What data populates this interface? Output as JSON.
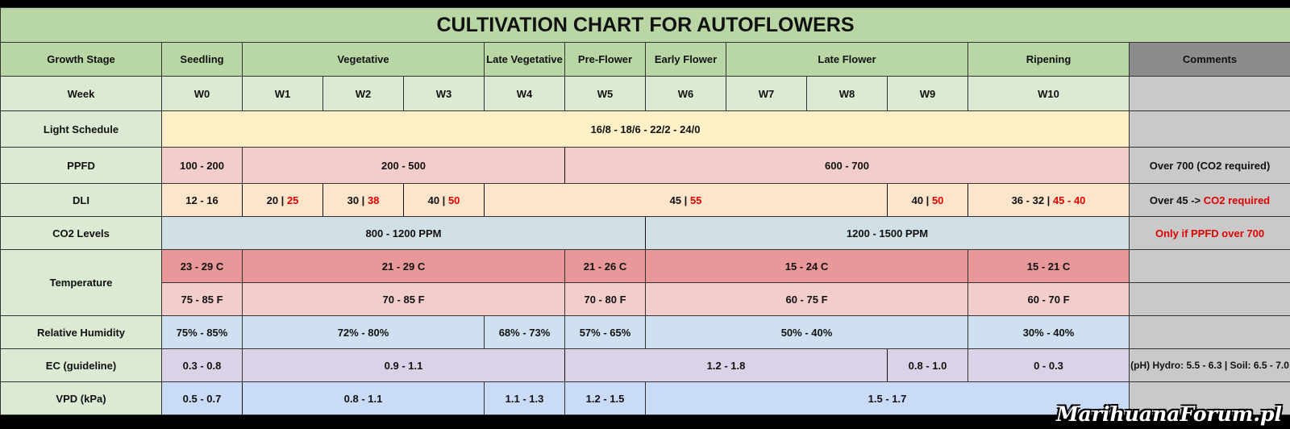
{
  "title": "CULTIVATION CHART FOR AUTOFLOWERS",
  "row_labels": {
    "stage": "Growth Stage",
    "week": "Week",
    "light": "Light Schedule",
    "ppfd": "PPFD",
    "dli": "DLI",
    "co2": "CO2 Levels",
    "temp": "Temperature",
    "rh": "Relative Humidity",
    "ec": "EC (guideline)",
    "vpd": "VPD (kPa)"
  },
  "stages": [
    "Seedling",
    "Vegetative",
    "Late Vegetative",
    "Pre-Flower",
    "Early Flower",
    "Late Flower",
    "Ripening"
  ],
  "comments_header": "Comments",
  "weeks": [
    "W0",
    "W1",
    "W2",
    "W3",
    "W4",
    "W5",
    "W6",
    "W7",
    "W8",
    "W9",
    "W10"
  ],
  "light": "16/8 - 18/6 - 22/2 - 24/0",
  "ppfd": [
    "100 - 200",
    "200 - 500",
    "600 - 700"
  ],
  "ppfd_comment": "Over 700 (CO2 required)",
  "dli": [
    {
      "a": "12 - 16",
      "b": ""
    },
    {
      "a": "20",
      "sep": " | ",
      "b": "25"
    },
    {
      "a": "30",
      "sep": " | ",
      "b": "38"
    },
    {
      "a": "40",
      "sep": " | ",
      "b": "50"
    },
    {
      "a": "45",
      "sep": " | ",
      "b": "55"
    },
    {
      "a": "40",
      "sep": " | ",
      "b": "50"
    },
    {
      "a": "36 - 32",
      "sep": " | ",
      "b": "45 - 40"
    }
  ],
  "dli_comment": {
    "a": "Over 45 -> ",
    "b": "CO2 required"
  },
  "co2": [
    "800 - 1200 PPM",
    "1200 - 1500 PPM"
  ],
  "co2_comment": "Only if PPFD over 700",
  "temp_c": [
    "23 - 29 C",
    "21 - 29 C",
    "21 - 26 C",
    "15 - 24 C",
    "15 - 21 C"
  ],
  "temp_f": [
    "75 - 85 F",
    "70 - 85 F",
    "70 - 80 F",
    "60 - 75 F",
    "60 - 70 F"
  ],
  "rh": [
    "75% - 85%",
    "72% - 80%",
    "68% - 73%",
    "57% - 65%",
    "50% - 40%",
    "30% - 40%"
  ],
  "ec": [
    "0.3 - 0.8",
    "0.9 - 1.1",
    "1.2 - 1.8",
    "0.8 - 1.0",
    "0 - 0.3"
  ],
  "ec_comment": "(pH) Hydro: 5.5 - 6.3 | Soil: 6.5 - 7.0",
  "vpd": [
    "0.5 - 0.7",
    "0.8 - 1.1",
    "1.1 - 1.3",
    "1.2 - 1.5",
    "1.5 - 1.7"
  ],
  "watermark": "MarihuanaForum.pl",
  "colors": {
    "title_green": "#b8d7a4",
    "label_green": "#dcead3",
    "comments_grey": "#c9c9c9",
    "light_yellow": "#fff0c8",
    "ppfd_pink": "#f3cccc",
    "dli_peach": "#fde5cc",
    "co2_bluegrey": "#d0e0e4",
    "temp_c_red": "#e89898",
    "rh_blue": "#cfe1f1",
    "ec_lavender": "#dcd2e8",
    "vpd_blue": "#c9dbf7",
    "accent_red": "#e00000"
  }
}
